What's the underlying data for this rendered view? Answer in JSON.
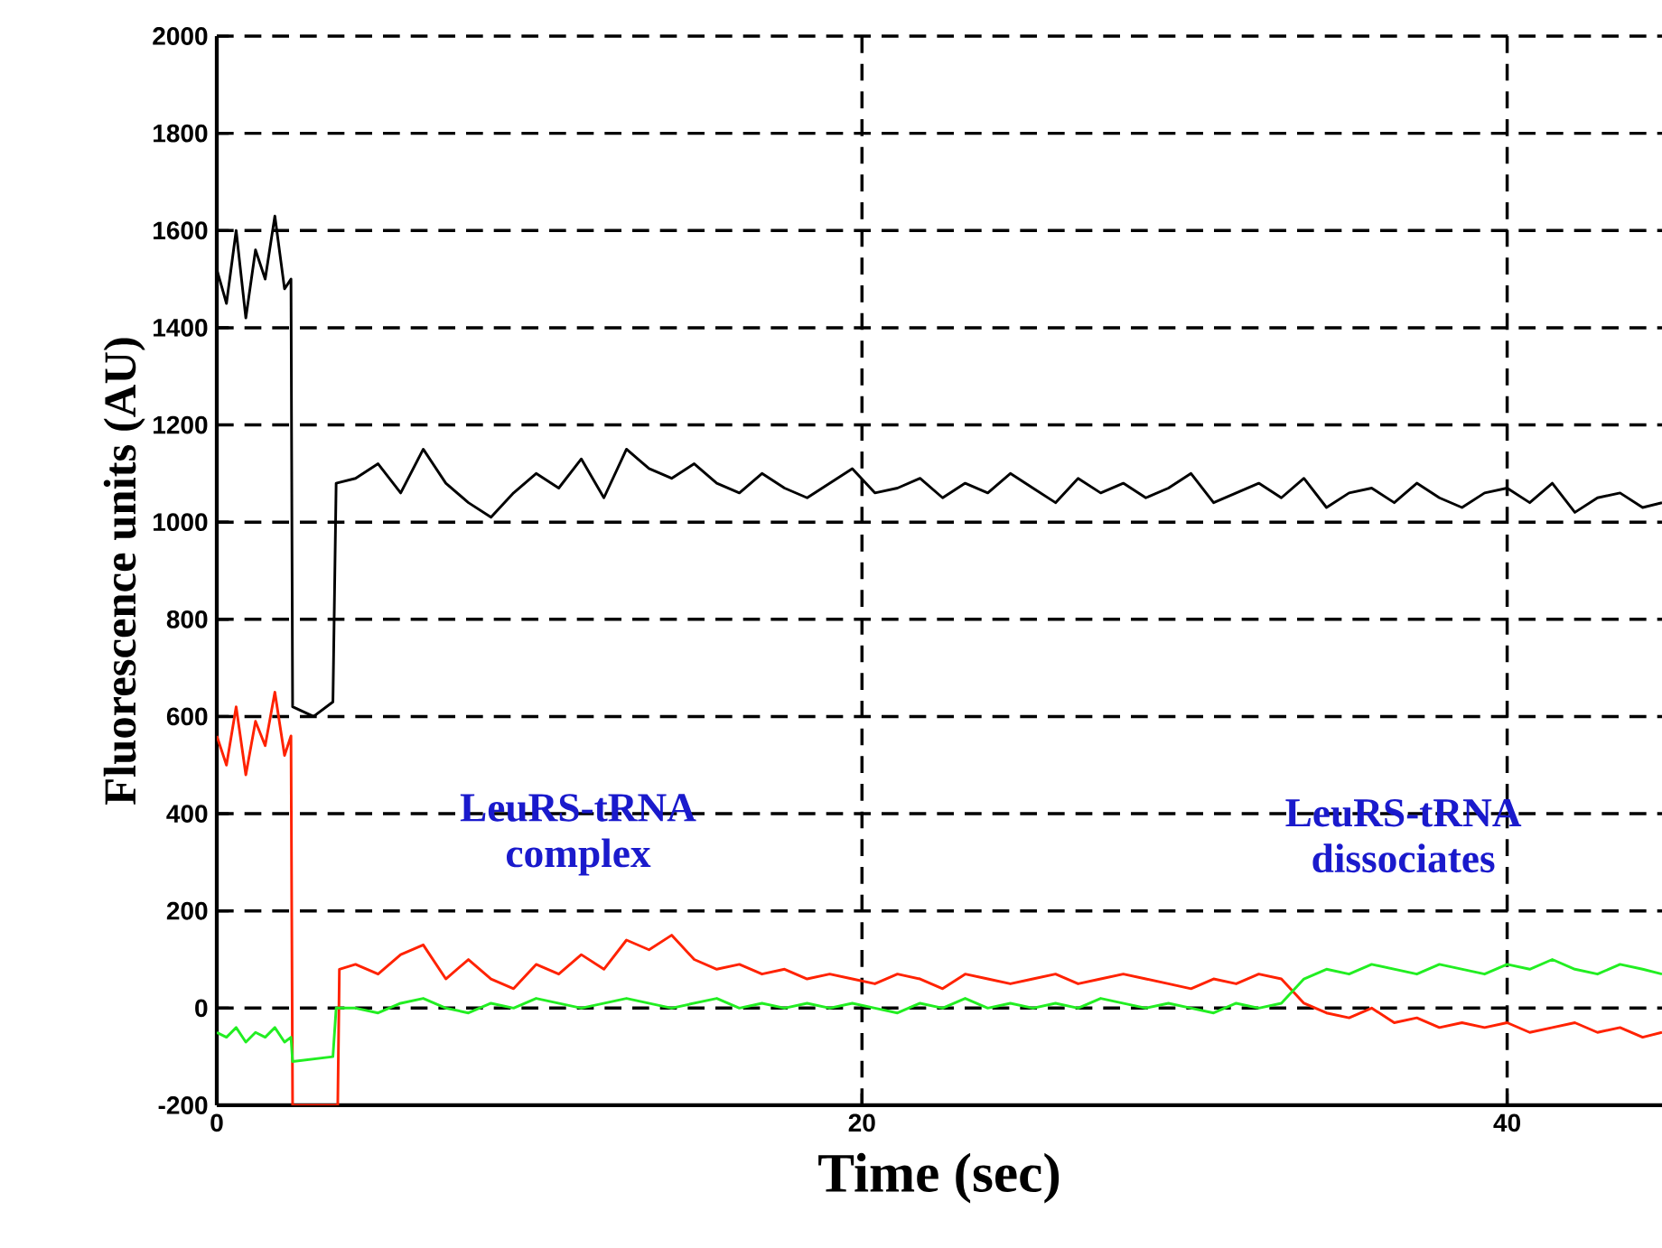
{
  "chart_data": {
    "type": "line",
    "xlabel": "Time (sec)",
    "ylabel": "Fluorescence units (AU)",
    "xlim": [
      0,
      44.8
    ],
    "ylim": [
      -200,
      2000
    ],
    "xticks": [
      0,
      20,
      40
    ],
    "yticks": [
      -200,
      0,
      200,
      400,
      600,
      800,
      1000,
      1200,
      1400,
      1600,
      1800,
      2000
    ],
    "grid": true,
    "line_style": "solid",
    "marker": "none",
    "annotations": [
      "LeuRS-tRNA complex",
      "LeuRS-tRNA dissociates"
    ],
    "series": [
      {
        "color": "#000000",
        "x": [
          0,
          0.3,
          0.6,
          0.9,
          1.2,
          1.5,
          1.8,
          2.1,
          2.3,
          2.35,
          3.0,
          3.6,
          3.7,
          4.3,
          5,
          5.7,
          6.4,
          7.1,
          7.8,
          8.5,
          9.2,
          9.9,
          10.6,
          11.3,
          12,
          12.7,
          13.4,
          14.1,
          14.8,
          15.5,
          16.2,
          16.9,
          17.6,
          18.3,
          19,
          19.7,
          20.4,
          21.1,
          21.8,
          22.5,
          23.2,
          23.9,
          24.6,
          25.3,
          26,
          26.7,
          27.4,
          28.1,
          28.8,
          29.5,
          30.2,
          30.9,
          31.6,
          32.3,
          33,
          33.7,
          34.4,
          35.1,
          35.8,
          36.5,
          37.2,
          37.9,
          38.6,
          39.3,
          40,
          40.7,
          41.4,
          42.1,
          42.8,
          43.5,
          44.2,
          44.8
        ],
        "values": [
          1520,
          1450,
          1600,
          1420,
          1560,
          1500,
          1630,
          1480,
          1500,
          620,
          600,
          630,
          1080,
          1090,
          1120,
          1060,
          1150,
          1080,
          1040,
          1010,
          1060,
          1100,
          1070,
          1130,
          1050,
          1150,
          1110,
          1090,
          1120,
          1080,
          1060,
          1100,
          1070,
          1050,
          1080,
          1110,
          1060,
          1070,
          1090,
          1050,
          1080,
          1060,
          1100,
          1070,
          1040,
          1090,
          1060,
          1080,
          1050,
          1070,
          1100,
          1040,
          1060,
          1080,
          1050,
          1090,
          1030,
          1060,
          1070,
          1040,
          1080,
          1050,
          1030,
          1060,
          1070,
          1040,
          1080,
          1020,
          1050,
          1060,
          1030,
          1040
        ]
      },
      {
        "color": "#ff2200",
        "x": [
          0,
          0.3,
          0.6,
          0.9,
          1.2,
          1.5,
          1.8,
          2.1,
          2.3,
          2.35,
          3.75,
          3.8,
          4.3,
          5,
          5.7,
          6.4,
          7.1,
          7.8,
          8.5,
          9.2,
          9.9,
          10.6,
          11.3,
          12,
          12.7,
          13.4,
          14.1,
          14.8,
          15.5,
          16.2,
          16.9,
          17.6,
          18.3,
          19,
          19.7,
          20.4,
          21.1,
          21.8,
          22.5,
          23.2,
          23.9,
          24.6,
          25.3,
          26,
          26.7,
          27.4,
          28.1,
          28.8,
          29.5,
          30.2,
          30.9,
          31.6,
          32.3,
          33,
          33.7,
          34.4,
          35.1,
          35.8,
          36.5,
          37.2,
          37.9,
          38.6,
          39.3,
          40,
          40.7,
          41.4,
          42.1,
          42.8,
          43.5,
          44.2,
          44.8
        ],
        "values": [
          560,
          500,
          620,
          480,
          590,
          540,
          650,
          520,
          560,
          -200,
          -200,
          80,
          90,
          70,
          110,
          130,
          60,
          100,
          60,
          40,
          90,
          70,
          110,
          80,
          140,
          120,
          150,
          100,
          80,
          90,
          70,
          80,
          60,
          70,
          60,
          50,
          70,
          60,
          40,
          70,
          60,
          50,
          60,
          70,
          50,
          60,
          70,
          60,
          50,
          40,
          60,
          50,
          70,
          60,
          10,
          -10,
          -20,
          0,
          -30,
          -20,
          -40,
          -30,
          -40,
          -30,
          -50,
          -40,
          -30,
          -50,
          -40,
          -60,
          -50
        ]
      },
      {
        "color": "#22ee22",
        "x": [
          0,
          0.3,
          0.6,
          0.9,
          1.2,
          1.5,
          1.8,
          2.1,
          2.3,
          2.35,
          3.6,
          3.7,
          4.3,
          5,
          5.7,
          6.4,
          7.1,
          7.8,
          8.5,
          9.2,
          9.9,
          10.6,
          11.3,
          12,
          12.7,
          13.4,
          14.1,
          14.8,
          15.5,
          16.2,
          16.9,
          17.6,
          18.3,
          19,
          19.7,
          20.4,
          21.1,
          21.8,
          22.5,
          23.2,
          23.9,
          24.6,
          25.3,
          26,
          26.7,
          27.4,
          28.1,
          28.8,
          29.5,
          30.2,
          30.9,
          31.6,
          32.3,
          33,
          33.7,
          34.4,
          35.1,
          35.8,
          36.5,
          37.2,
          37.9,
          38.6,
          39.3,
          40,
          40.7,
          41.4,
          42.1,
          42.8,
          43.5,
          44.2,
          44.8
        ],
        "values": [
          -50,
          -60,
          -40,
          -70,
          -50,
          -60,
          -40,
          -70,
          -60,
          -110,
          -100,
          0,
          0,
          -10,
          10,
          20,
          0,
          -10,
          10,
          0,
          20,
          10,
          0,
          10,
          20,
          10,
          0,
          10,
          20,
          0,
          10,
          0,
          10,
          0,
          10,
          0,
          -10,
          10,
          0,
          20,
          0,
          10,
          0,
          10,
          0,
          20,
          10,
          0,
          10,
          0,
          -10,
          10,
          0,
          10,
          60,
          80,
          70,
          90,
          80,
          70,
          90,
          80,
          70,
          90,
          80,
          100,
          80,
          70,
          90,
          80,
          70
        ]
      }
    ]
  }
}
